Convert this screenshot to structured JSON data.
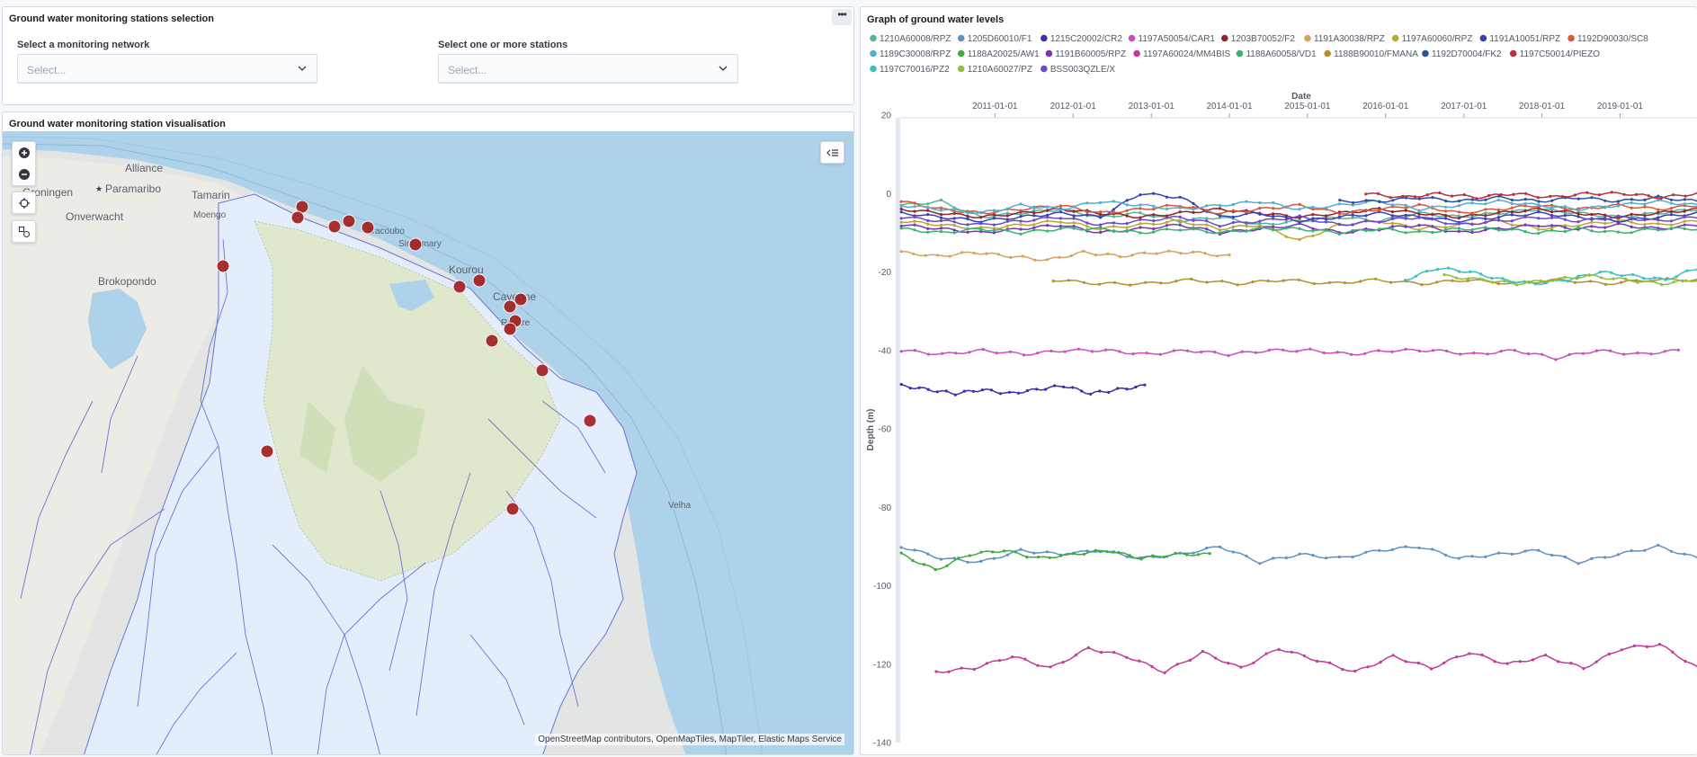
{
  "selection_panel": {
    "title": "Ground water monitoring stations selection",
    "network_label": "Select a monitoring network",
    "network_placeholder": "Select...",
    "stations_label": "Select one or more stations",
    "stations_placeholder": "Select..."
  },
  "map_panel": {
    "title": "Ground water monitoring station visualisation",
    "attribution": "OpenStreetMap contributors, OpenMapTiles, MapTiler, Elastic Maps Service",
    "place_labels": [
      "Alliance",
      "Paramaribo",
      "Groningen",
      "Tamarin",
      "Moengo",
      "Onverwacht",
      "Brokopondo",
      "Kourou",
      "Cayenne",
      "Remire",
      "Sinnamary",
      "Iracoubo",
      "Velha"
    ],
    "station_marker_color": "#a32121",
    "station_count": 18
  },
  "graph_panel": {
    "title": "Graph of ground water levels"
  },
  "chart_data": {
    "type": "line",
    "title": "Graph of ground water levels",
    "xlabel": "Date",
    "ylabel": "Depth (m)",
    "x_ticks": [
      "2011-01-01",
      "2012-01-01",
      "2013-01-01",
      "2014-01-01",
      "2015-01-01",
      "2016-01-01",
      "2017-01-01",
      "2018-01-01",
      "2019-01-01"
    ],
    "x_range": [
      "2009-10-15",
      "2019-12-31"
    ],
    "y_ticks": [
      "20",
      "0",
      "-20",
      "-40",
      "-60",
      "-80",
      "-100",
      "-120",
      "-140"
    ],
    "ylim": [
      -140,
      20
    ],
    "legend_position": "top",
    "series": [
      {
        "name": "1210A60008/RPZ",
        "color": "#54b399",
        "start": "2009-10-20",
        "end": "2019-12-31",
        "values": [
          -3,
          -2,
          -6,
          -5,
          -4,
          -6,
          -5,
          -7,
          -6,
          -8,
          -7,
          -6,
          -7,
          -5,
          -6,
          -5,
          -4,
          -5,
          -6,
          -5,
          -4
        ]
      },
      {
        "name": "1205D60010/F1",
        "color": "#6092c0",
        "start": "2009-10-20",
        "end": "2019-12-31",
        "values": [
          -90,
          -93,
          -94,
          -91,
          -92,
          -91,
          -93,
          -92,
          -90,
          -94,
          -92,
          -93,
          -91,
          -90,
          -93,
          -92,
          -91,
          -94,
          -92,
          -90,
          -93
        ]
      },
      {
        "name": "1215C20002/CR2",
        "color": "#3f2cad",
        "start": "2009-10-20",
        "end": "2012-12-01",
        "values": [
          -49,
          -50,
          -51,
          -50,
          -51,
          -50,
          -49,
          -51,
          -50,
          -49
        ]
      },
      {
        "name": "1197A50054/CAR1",
        "color": "#ca4fbe",
        "start": "2009-10-20",
        "end": "2019-10-01",
        "values": [
          -40,
          -41,
          -40,
          -41,
          -40,
          -40,
          -41,
          -40,
          -41,
          -40,
          -40,
          -41,
          -40,
          -40,
          -41,
          -40,
          -42,
          -40,
          -41,
          -40
        ]
      },
      {
        "name": "1203B70052/F2",
        "color": "#922626",
        "start": "2009-10-20",
        "end": "2019-12-31",
        "values": [
          -4,
          -5,
          -6,
          -5,
          -4,
          -5,
          -6,
          -5,
          -4,
          -5,
          -6,
          -5,
          -4,
          -5,
          -6,
          -5,
          -4,
          -5,
          -6,
          -5,
          -4
        ]
      },
      {
        "name": "1191A30038/RPZ",
        "color": "#d6a35c",
        "start": "2009-10-20",
        "end": "2014-01-01",
        "values": [
          -15,
          -16,
          -15,
          -16,
          -17,
          -15,
          -16,
          -15,
          -15,
          -16
        ]
      },
      {
        "name": "1197A60060/RPZ",
        "color": "#b9a831",
        "start": "2009-10-20",
        "end": "2019-12-31",
        "values": [
          -7,
          -8,
          -9,
          -8,
          -7,
          -9,
          -8,
          -7,
          -9,
          -8,
          -12,
          -8,
          -7,
          -9,
          -8,
          -7,
          -9,
          -8,
          -7,
          -8,
          -7
        ]
      },
      {
        "name": "1191A10051/RPZ",
        "color": "#3340b8",
        "start": "2009-10-20",
        "end": "2019-12-31",
        "values": [
          -5,
          -6,
          -7,
          -6,
          -5,
          -6,
          0,
          -1,
          -6,
          -5,
          -7,
          -6,
          -5,
          -6,
          -7,
          -6,
          -5,
          -6,
          -7,
          -6,
          -5
        ]
      },
      {
        "name": "1192D90030/SC8",
        "color": "#d8573d",
        "start": "2009-10-20",
        "end": "2019-12-31",
        "values": [
          -2,
          -4,
          -5,
          -4,
          -3,
          -5,
          -4,
          -3,
          -5,
          -4,
          -3,
          -5,
          -4,
          -3,
          -5,
          -4,
          -3,
          -4,
          -3,
          -4,
          -3
        ]
      },
      {
        "name": "1189C30008/RPZ",
        "color": "#54aed0",
        "start": "2009-10-20",
        "end": "2019-12-31",
        "values": [
          -3,
          -4,
          -5,
          -3,
          -4,
          -2,
          -3,
          -4,
          -3,
          -2,
          -4,
          -3,
          -2,
          -4,
          -3,
          -2,
          -3,
          -4,
          -3,
          -2,
          -3
        ]
      },
      {
        "name": "1188A20025/AW1",
        "color": "#3dab3d",
        "start": "2009-10-20",
        "end": "2013-10-01",
        "values": [
          -92,
          -96,
          -92,
          -91,
          -93,
          -92,
          -91,
          -93,
          -92,
          -92
        ]
      },
      {
        "name": "1191B60005/RPZ",
        "color": "#7a34b5",
        "start": "2009-10-20",
        "end": "2019-12-31",
        "values": [
          -8,
          -9,
          -10,
          -9,
          -8,
          -10,
          -9,
          -8,
          -10,
          -9,
          -8,
          -10,
          -9,
          -8,
          -10,
          -9,
          -8,
          -9,
          -8,
          -9,
          -8
        ]
      },
      {
        "name": "1197A60024/MM4BIS",
        "color": "#c43a98",
        "start": "2010-04-01",
        "end": "2019-12-31",
        "values": [
          -122,
          -121,
          -118,
          -121,
          -116,
          -118,
          -122,
          -117,
          -121,
          -116,
          -119,
          -122,
          -118,
          -121,
          -117,
          -120,
          -118,
          -121,
          -116,
          -115,
          -121
        ]
      },
      {
        "name": "1188A60058/VD1",
        "color": "#33b56f",
        "start": "2009-10-20",
        "end": "2019-12-31",
        "values": [
          -9,
          -10,
          -9,
          -10,
          -9,
          -9,
          -10,
          -9,
          -10,
          -9,
          -9,
          -10,
          -9,
          -10,
          -9,
          -9,
          -10,
          -9,
          -10,
          -9,
          -9
        ]
      },
      {
        "name": "1188B90010/FMANA",
        "color": "#b88e32",
        "start": "2011-10-01",
        "end": "2019-12-31",
        "values": [
          -22,
          -23,
          -23,
          -22,
          -23,
          -22,
          -23,
          -22,
          -23,
          -22,
          -23,
          -22,
          -23,
          -22,
          -22
        ]
      },
      {
        "name": "1192D70004/FK2",
        "color": "#2c4f9e",
        "start": "2015-06-01",
        "end": "2019-12-31",
        "values": [
          -2,
          -2,
          -1,
          -2,
          -1,
          -2,
          -1,
          -2,
          -1,
          -2
        ]
      },
      {
        "name": "1197C50014/PIEZO",
        "color": "#bd2f3e",
        "start": "2015-10-01",
        "end": "2019-12-31",
        "values": [
          0,
          -1,
          0,
          -1,
          0,
          -1,
          0,
          0,
          -1,
          0
        ]
      },
      {
        "name": "1197C70016/PZ2",
        "color": "#3cc0c0",
        "start": "2016-04-01",
        "end": "2019-12-31",
        "values": [
          -22,
          -19,
          -20,
          -22,
          -23,
          -22,
          -20,
          -21,
          -22,
          -19
        ]
      },
      {
        "name": "1210A60027/PZ",
        "color": "#8fc136",
        "start": "2016-10-01",
        "end": "2019-12-31",
        "values": [
          -21,
          -22,
          -23,
          -22,
          -21,
          -22,
          -23,
          -22
        ]
      },
      {
        "name": "BSS003QZLE/X",
        "color": "#6e48c9",
        "start": "2009-10-20",
        "end": "2019-12-31",
        "values": [
          -6,
          -7,
          -8,
          -7,
          -6,
          -8,
          -7,
          -6,
          -8,
          -7,
          -6,
          -8,
          -7,
          -6,
          -8,
          -7,
          -6,
          -7,
          -6,
          -7,
          -6
        ]
      }
    ]
  }
}
